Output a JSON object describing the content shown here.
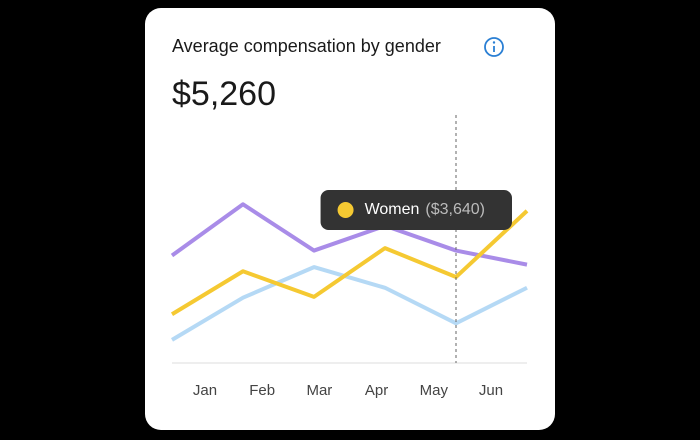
{
  "chart_data": {
    "type": "line",
    "title": "Average compensation by gender",
    "value": "$5,260",
    "categories": [
      "Jan",
      "Feb",
      "Mar",
      "Apr",
      "May",
      "Jun"
    ],
    "series": [
      {
        "name": "Women",
        "color": "#f5c932",
        "values": [
          3190,
          3710,
          3400,
          3990,
          3640,
          4440
        ],
        "value_labels": [
          null,
          null,
          null,
          null,
          "($3,640)",
          null
        ]
      },
      {
        "color": "#a98ce8",
        "values": [
          3900,
          4520,
          3960,
          4260,
          3960,
          3790
        ]
      },
      {
        "color": "#b5d9f5",
        "values": [
          2880,
          3390,
          3760,
          3510,
          3080,
          3510
        ]
      }
    ],
    "ylim": [
      2600,
      5600
    ]
  }
}
